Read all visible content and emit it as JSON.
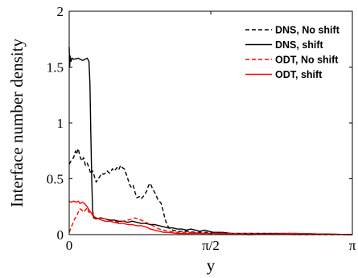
{
  "chart_data": {
    "type": "line",
    "xlabel": "y",
    "ylabel": "Interface number density",
    "xlim": [
      0,
      3.14159
    ],
    "ylim": [
      0,
      2
    ],
    "grid": false,
    "legend_position": "top-right",
    "x_ticks": [
      {
        "value": 0,
        "label": "0"
      },
      {
        "value": 1.5708,
        "label": "π/2"
      },
      {
        "value": 3.14159,
        "label": "π"
      }
    ],
    "y_ticks": [
      {
        "value": 0,
        "label": "0"
      },
      {
        "value": 0.5,
        "label": "0.5"
      },
      {
        "value": 1,
        "label": "1"
      },
      {
        "value": 1.5,
        "label": "1.5"
      },
      {
        "value": 2,
        "label": "2"
      }
    ],
    "series": [
      {
        "name": "DNS, No shift",
        "color": "#000000",
        "dash": "dashed",
        "points": [
          [
            0.0,
            0.63
          ],
          [
            0.02,
            0.66
          ],
          [
            0.05,
            0.69
          ],
          [
            0.07,
            0.75
          ],
          [
            0.08,
            0.72
          ],
          [
            0.1,
            0.77
          ],
          [
            0.12,
            0.7
          ],
          [
            0.14,
            0.66
          ],
          [
            0.16,
            0.69
          ],
          [
            0.18,
            0.62
          ],
          [
            0.2,
            0.64
          ],
          [
            0.22,
            0.6
          ],
          [
            0.24,
            0.54
          ],
          [
            0.26,
            0.57
          ],
          [
            0.28,
            0.52
          ],
          [
            0.3,
            0.47
          ],
          [
            0.32,
            0.5
          ],
          [
            0.34,
            0.52
          ],
          [
            0.36,
            0.55
          ],
          [
            0.38,
            0.54
          ],
          [
            0.4,
            0.55
          ],
          [
            0.42,
            0.57
          ],
          [
            0.45,
            0.55
          ],
          [
            0.48,
            0.59
          ],
          [
            0.5,
            0.57
          ],
          [
            0.53,
            0.6
          ],
          [
            0.55,
            0.58
          ],
          [
            0.57,
            0.62
          ],
          [
            0.59,
            0.6
          ],
          [
            0.61,
            0.59
          ],
          [
            0.63,
            0.55
          ],
          [
            0.65,
            0.5
          ],
          [
            0.67,
            0.45
          ],
          [
            0.69,
            0.42
          ],
          [
            0.71,
            0.44
          ],
          [
            0.73,
            0.38
          ],
          [
            0.75,
            0.33
          ],
          [
            0.78,
            0.34
          ],
          [
            0.8,
            0.32
          ],
          [
            0.83,
            0.35
          ],
          [
            0.86,
            0.39
          ],
          [
            0.88,
            0.44
          ],
          [
            0.9,
            0.46
          ],
          [
            0.92,
            0.42
          ],
          [
            0.94,
            0.39
          ],
          [
            0.96,
            0.36
          ],
          [
            0.98,
            0.32
          ],
          [
            1.0,
            0.3
          ],
          [
            1.02,
            0.28
          ],
          [
            1.04,
            0.22
          ],
          [
            1.06,
            0.15
          ],
          [
            1.08,
            0.1
          ],
          [
            1.1,
            0.07
          ],
          [
            1.12,
            0.05
          ],
          [
            1.15,
            0.04
          ],
          [
            1.2,
            0.03
          ],
          [
            1.3,
            0.03
          ],
          [
            1.4,
            0.02
          ],
          [
            1.5,
            0.02
          ],
          [
            1.6,
            0.02
          ],
          [
            1.8,
            0.01
          ],
          [
            2.0,
            0.01
          ],
          [
            2.5,
            0.01
          ],
          [
            3.14,
            0.0
          ]
        ]
      },
      {
        "name": "DNS, shift",
        "color": "#000000",
        "dash": "solid",
        "points": [
          [
            0.0,
            1.68
          ],
          [
            0.005,
            1.5
          ],
          [
            0.01,
            1.6
          ],
          [
            0.02,
            1.55
          ],
          [
            0.03,
            1.58
          ],
          [
            0.05,
            1.57
          ],
          [
            0.1,
            1.58
          ],
          [
            0.15,
            1.56
          ],
          [
            0.2,
            1.58
          ],
          [
            0.22,
            1.55
          ],
          [
            0.23,
            1.35
          ],
          [
            0.24,
            0.9
          ],
          [
            0.25,
            0.5
          ],
          [
            0.26,
            0.22
          ],
          [
            0.27,
            0.15
          ],
          [
            0.3,
            0.14
          ],
          [
            0.35,
            0.15
          ],
          [
            0.4,
            0.14
          ],
          [
            0.45,
            0.13
          ],
          [
            0.5,
            0.13
          ],
          [
            0.55,
            0.12
          ],
          [
            0.6,
            0.12
          ],
          [
            0.65,
            0.11
          ],
          [
            0.7,
            0.12
          ],
          [
            0.75,
            0.11
          ],
          [
            0.8,
            0.1
          ],
          [
            0.85,
            0.1
          ],
          [
            0.9,
            0.09
          ],
          [
            0.95,
            0.09
          ],
          [
            1.0,
            0.08
          ],
          [
            1.05,
            0.07
          ],
          [
            1.1,
            0.06
          ],
          [
            1.15,
            0.06
          ],
          [
            1.2,
            0.05
          ],
          [
            1.25,
            0.05
          ],
          [
            1.3,
            0.04
          ],
          [
            1.35,
            0.05
          ],
          [
            1.4,
            0.04
          ],
          [
            1.45,
            0.03
          ],
          [
            1.5,
            0.04
          ],
          [
            1.55,
            0.03
          ],
          [
            1.6,
            0.02
          ],
          [
            1.7,
            0.02
          ],
          [
            1.8,
            0.01
          ],
          [
            2.0,
            0.01
          ],
          [
            2.5,
            0.01
          ],
          [
            3.14,
            0.0
          ]
        ]
      },
      {
        "name": "ODT, No shift",
        "color": "#ff0000",
        "dash": "dashed",
        "points": [
          [
            0.0,
            0.02
          ],
          [
            0.02,
            0.06
          ],
          [
            0.04,
            0.1
          ],
          [
            0.06,
            0.14
          ],
          [
            0.08,
            0.16
          ],
          [
            0.1,
            0.2
          ],
          [
            0.12,
            0.23
          ],
          [
            0.14,
            0.22
          ],
          [
            0.16,
            0.2
          ],
          [
            0.18,
            0.22
          ],
          [
            0.2,
            0.24
          ],
          [
            0.22,
            0.2
          ],
          [
            0.25,
            0.18
          ],
          [
            0.28,
            0.16
          ],
          [
            0.3,
            0.15
          ],
          [
            0.33,
            0.14
          ],
          [
            0.36,
            0.15
          ],
          [
            0.4,
            0.14
          ],
          [
            0.45,
            0.12
          ],
          [
            0.5,
            0.12
          ],
          [
            0.55,
            0.11
          ],
          [
            0.6,
            0.12
          ],
          [
            0.65,
            0.13
          ],
          [
            0.7,
            0.14
          ],
          [
            0.73,
            0.15
          ],
          [
            0.76,
            0.14
          ],
          [
            0.8,
            0.13
          ],
          [
            0.85,
            0.11
          ],
          [
            0.9,
            0.09
          ],
          [
            0.95,
            0.07
          ],
          [
            1.0,
            0.05
          ],
          [
            1.05,
            0.04
          ],
          [
            1.1,
            0.03
          ],
          [
            1.2,
            0.02
          ],
          [
            1.3,
            0.02
          ],
          [
            1.5,
            0.01
          ],
          [
            2.0,
            0.01
          ],
          [
            2.5,
            0.0
          ],
          [
            3.14,
            0.0
          ]
        ]
      },
      {
        "name": "ODT, shift",
        "color": "#ff0000",
        "dash": "solid",
        "points": [
          [
            0.0,
            0.3
          ],
          [
            0.02,
            0.29
          ],
          [
            0.05,
            0.3
          ],
          [
            0.08,
            0.29
          ],
          [
            0.1,
            0.3
          ],
          [
            0.12,
            0.28
          ],
          [
            0.15,
            0.29
          ],
          [
            0.18,
            0.27
          ],
          [
            0.2,
            0.25
          ],
          [
            0.22,
            0.22
          ],
          [
            0.25,
            0.19
          ],
          [
            0.28,
            0.16
          ],
          [
            0.3,
            0.15
          ],
          [
            0.33,
            0.14
          ],
          [
            0.36,
            0.13
          ],
          [
            0.4,
            0.12
          ],
          [
            0.45,
            0.12
          ],
          [
            0.5,
            0.11
          ],
          [
            0.55,
            0.1
          ],
          [
            0.6,
            0.1
          ],
          [
            0.65,
            0.09
          ],
          [
            0.7,
            0.09
          ],
          [
            0.75,
            0.08
          ],
          [
            0.8,
            0.08
          ],
          [
            0.85,
            0.07
          ],
          [
            0.9,
            0.05
          ],
          [
            0.95,
            0.04
          ],
          [
            1.0,
            0.03
          ],
          [
            1.05,
            0.02
          ],
          [
            1.1,
            0.02
          ],
          [
            1.2,
            0.01
          ],
          [
            1.4,
            0.01
          ],
          [
            1.6,
            0.01
          ],
          [
            2.0,
            0.0
          ],
          [
            2.5,
            0.01
          ],
          [
            3.14,
            0.0
          ]
        ]
      }
    ]
  }
}
